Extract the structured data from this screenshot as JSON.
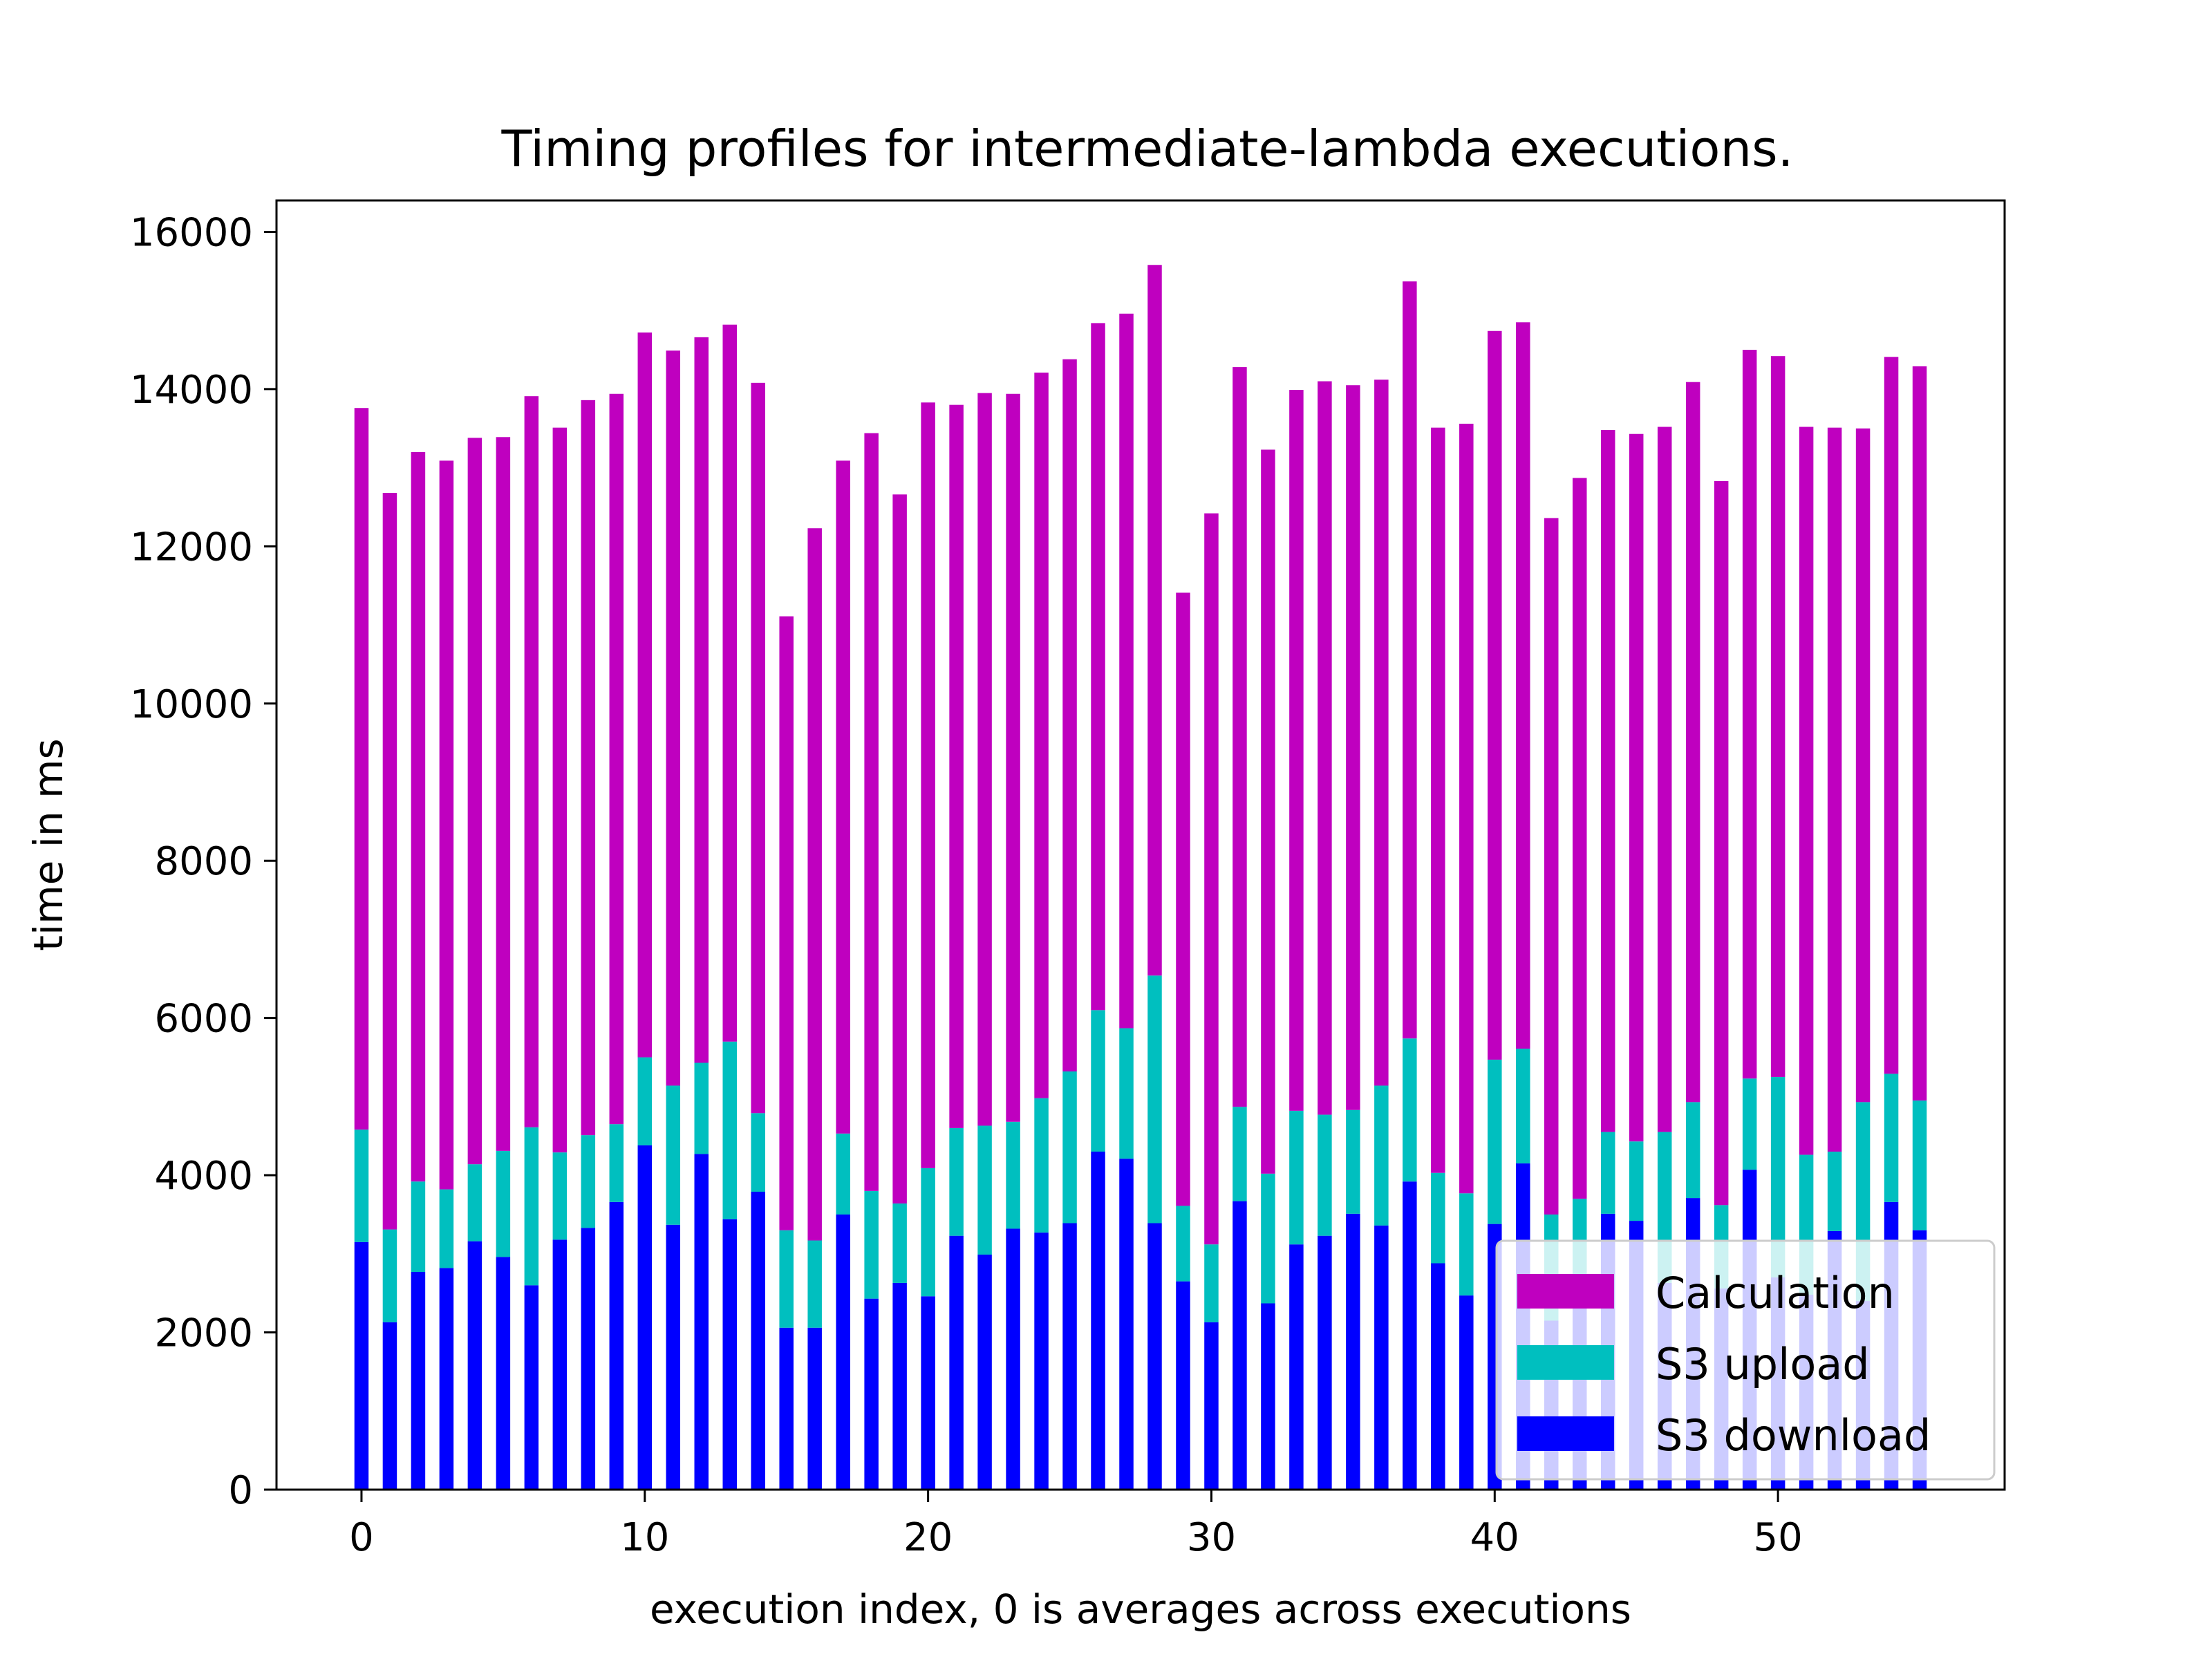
{
  "chart_data": {
    "type": "bar",
    "stacked": true,
    "title": "Timing profiles for intermediate-lambda executions.",
    "xlabel": "execution index, 0 is averages across executions",
    "ylabel": "time in ms",
    "xlim": [
      -3,
      58
    ],
    "ylim": [
      0,
      16400
    ],
    "xticks": [
      0,
      10,
      20,
      30,
      40,
      50
    ],
    "yticks": [
      0,
      2000,
      4000,
      6000,
      8000,
      10000,
      12000,
      14000,
      16000
    ],
    "grid": false,
    "legend_position": "lower-right",
    "legend_order": [
      "Calculation",
      "S3 upload",
      "S3 download"
    ],
    "x": [
      0,
      1,
      2,
      3,
      4,
      5,
      6,
      7,
      8,
      9,
      10,
      11,
      12,
      13,
      14,
      15,
      16,
      17,
      18,
      19,
      20,
      21,
      22,
      23,
      24,
      25,
      26,
      27,
      28,
      29,
      30,
      31,
      32,
      33,
      34,
      35,
      36,
      37,
      38,
      39,
      40,
      41,
      42,
      43,
      44,
      45,
      46,
      47,
      48,
      49,
      50,
      51,
      52,
      53,
      54,
      55
    ],
    "series": [
      {
        "name": "S3 download",
        "color": "#0000ff",
        "values": [
          3150,
          2130,
          2770,
          2820,
          3160,
          2960,
          2600,
          3180,
          3330,
          3660,
          4380,
          3370,
          4270,
          3440,
          3790,
          2060,
          2060,
          3500,
          2430,
          2630,
          2460,
          3230,
          2990,
          3320,
          3270,
          3390,
          4300,
          4210,
          3390,
          2650,
          2130,
          3670,
          2370,
          3120,
          3230,
          3510,
          3360,
          3920,
          2880,
          2470,
          3380,
          4150,
          2150,
          2470,
          3510,
          3420,
          2630,
          3710,
          2560,
          4070,
          2700,
          2480,
          3290,
          2400,
          3660,
          3300
        ]
      },
      {
        "name": "S3 upload",
        "color": "#00bfbf",
        "values": [
          1430,
          1180,
          1150,
          1000,
          980,
          1350,
          2010,
          1110,
          1180,
          990,
          1120,
          1770,
          1160,
          2260,
          1000,
          1240,
          1110,
          1030,
          1370,
          1010,
          1630,
          1370,
          1640,
          1360,
          1710,
          1930,
          1800,
          1660,
          3150,
          960,
          990,
          1200,
          1650,
          1700,
          1540,
          1320,
          1780,
          1820,
          1150,
          1300,
          2090,
          1460,
          1350,
          1230,
          1040,
          1010,
          1920,
          1220,
          1060,
          1160,
          2550,
          1780,
          1010,
          2530,
          1630,
          1650
        ]
      },
      {
        "name": "Calculation",
        "color": "#bf00bf",
        "values": [
          9180,
          9370,
          9280,
          9270,
          9240,
          9080,
          9300,
          9220,
          9350,
          9290,
          9220,
          9350,
          9230,
          9120,
          9290,
          7810,
          9060,
          8560,
          9640,
          9020,
          9740,
          9200,
          9320,
          9260,
          9230,
          9060,
          8740,
          9090,
          9040,
          7800,
          9300,
          9410,
          9210,
          9170,
          9330,
          9220,
          8980,
          9630,
          9480,
          9790,
          9270,
          9240,
          8860,
          9170,
          8930,
          9000,
          8970,
          9160,
          9210,
          9270,
          9170,
          9260,
          9210,
          8570,
          9120,
          9340
        ]
      }
    ]
  }
}
